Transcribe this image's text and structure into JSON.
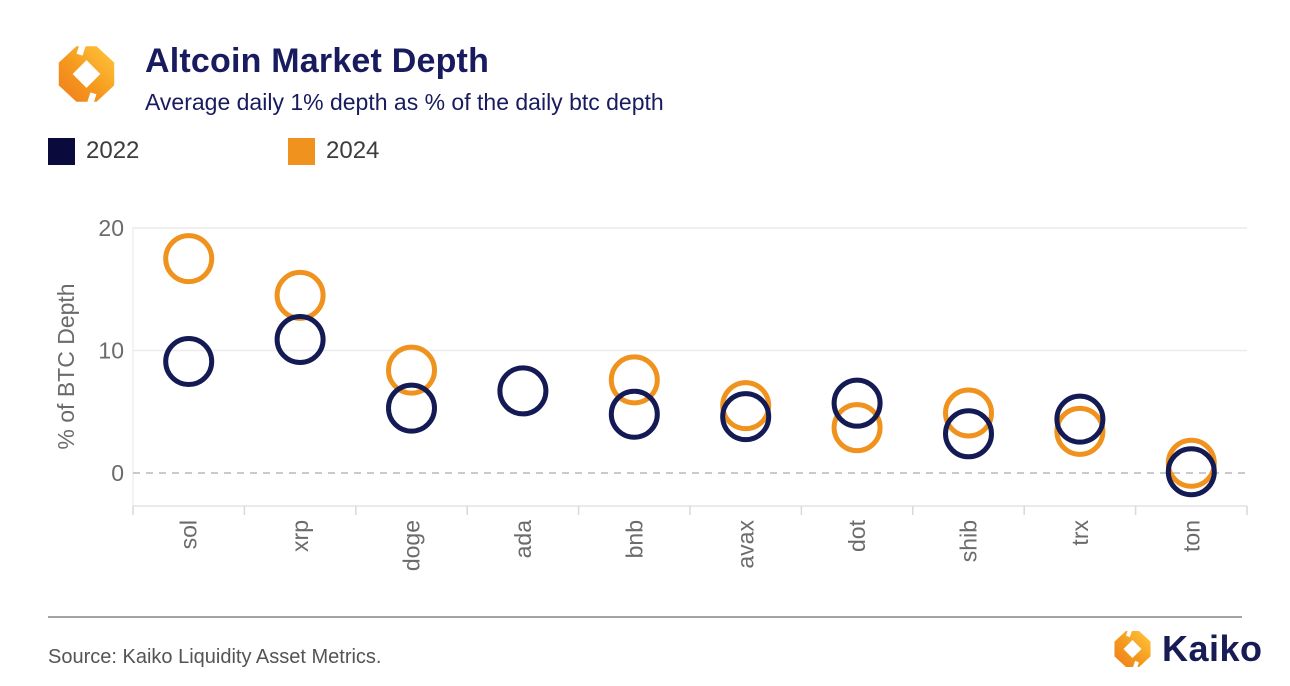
{
  "header": {
    "title": "Altcoin Market Depth",
    "subtitle": "Average daily 1% depth as % of the daily btc depth"
  },
  "legend": {
    "items": [
      {
        "label": "2022",
        "color": "#0a0a3d"
      },
      {
        "label": "2024",
        "color": "#f0931e"
      }
    ]
  },
  "chart_data": {
    "type": "scatter",
    "marker": "open-circle",
    "title": "Altcoin Market Depth",
    "subtitle": "Average daily 1% depth as % of the daily btc depth",
    "categories": [
      "sol",
      "xrp",
      "doge",
      "ada",
      "bnb",
      "avax",
      "dot",
      "shib",
      "trx",
      "ton"
    ],
    "series": [
      {
        "name": "2022",
        "color": "#141a53",
        "values": [
          9.1,
          10.9,
          5.3,
          6.7,
          4.8,
          4.6,
          5.7,
          3.2,
          4.4,
          0.1
        ]
      },
      {
        "name": "2024",
        "color": "#f0931e",
        "values": [
          17.5,
          14.5,
          8.4,
          null,
          7.6,
          5.5,
          3.7,
          4.9,
          3.4,
          0.8
        ]
      }
    ],
    "draw_order": [
      "2024",
      "2022"
    ],
    "xlabel": "",
    "ylabel": "% of BTC Depth",
    "yticks": [
      {
        "value": 0,
        "label": "0"
      },
      {
        "value": 10,
        "label": "10"
      },
      {
        "value": 20,
        "label": "20"
      }
    ],
    "ylim": [
      -2.8,
      20.2
    ],
    "grid": "horizontal solid at 10 and 20, dashed at 0",
    "legend_position": "top-left",
    "note": "ada has no visible 2024 marker"
  },
  "footer": {
    "source": "Source: Kaiko Liquidity Asset Metrics.",
    "brand_wordmark": "Kaiko"
  }
}
